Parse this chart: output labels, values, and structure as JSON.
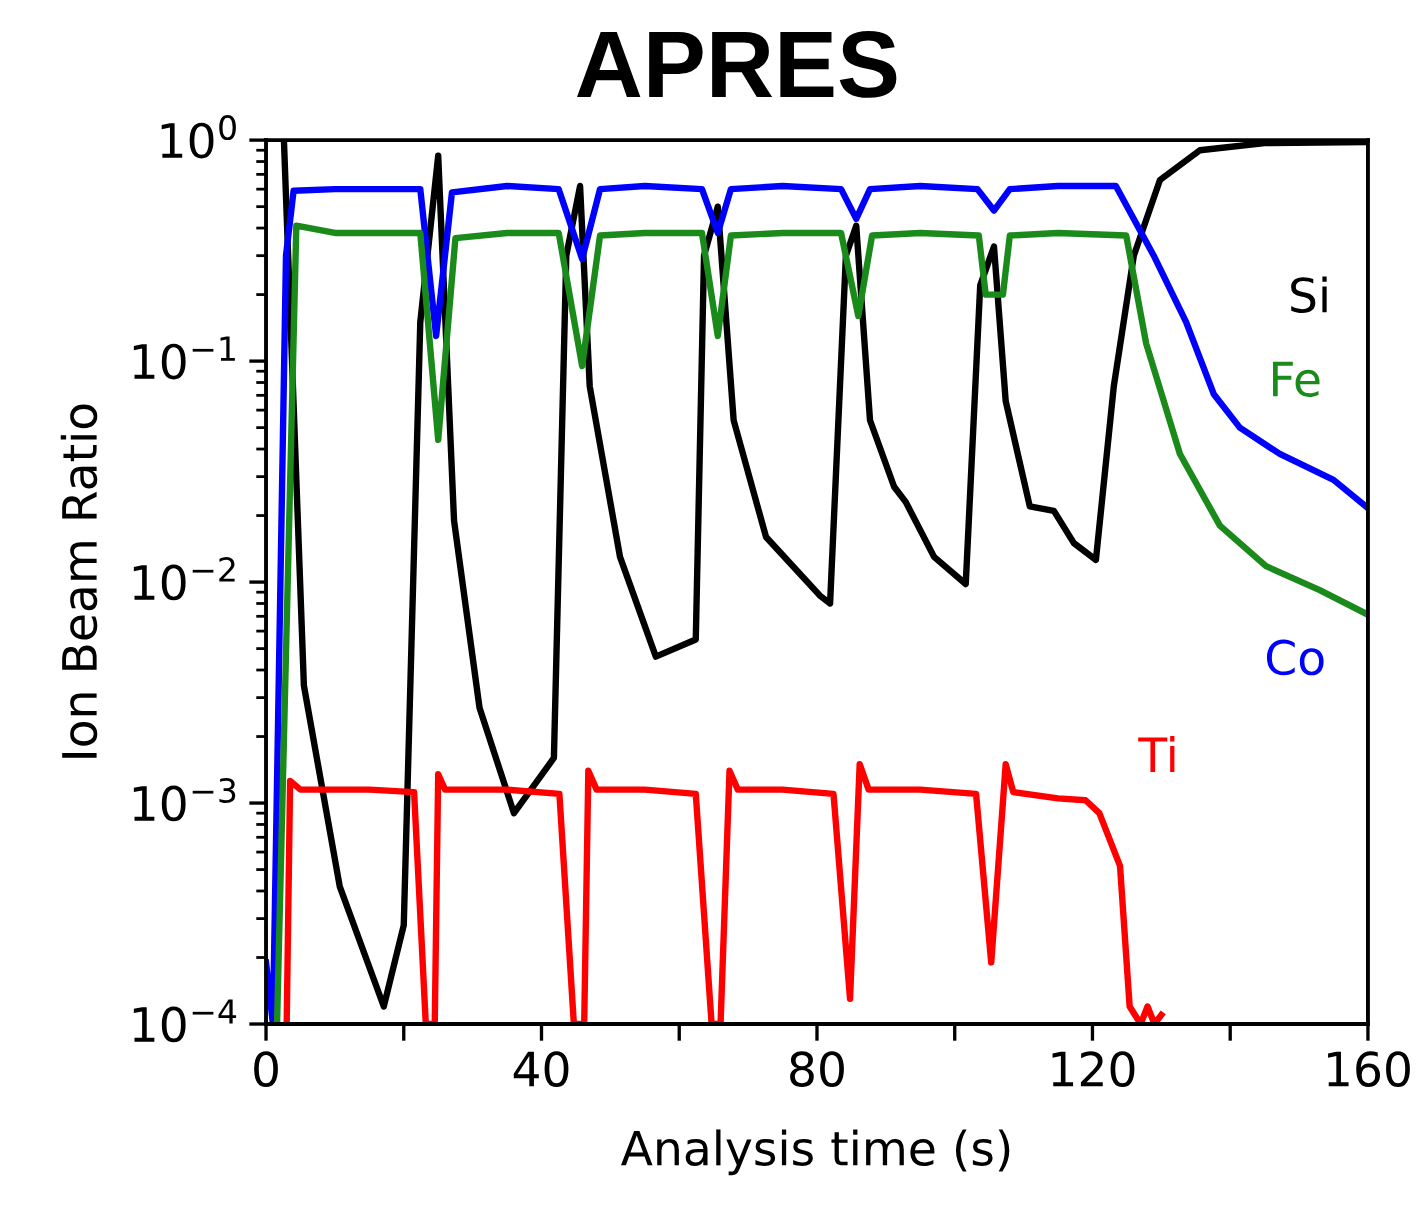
{
  "chart_data": {
    "type": "line",
    "title": "APRES",
    "xlabel": "Analysis time (s)",
    "ylabel": "Ion Beam Ratio",
    "log": "y",
    "grid": false,
    "legend": false,
    "marker": "none",
    "line_style": "solid",
    "xlim": [
      0,
      160
    ],
    "xticks": [
      0,
      {
        "value": 20,
        "label": null
      },
      40,
      {
        "value": 60,
        "label": null
      },
      80,
      {
        "value": 100,
        "label": null
      },
      120,
      {
        "value": 140,
        "label": null
      },
      160
    ],
    "ylim": [
      0.0001,
      1
    ],
    "yticks": [
      {
        "value": 0.0001,
        "label": "10$^{−4}$"
      },
      {
        "value": 0.001,
        "label": "10$^{−3}$"
      },
      {
        "value": 0.01,
        "label": "10$^{−2}$"
      },
      {
        "value": 0.1,
        "label": "10$^{−1}$"
      },
      {
        "value": 1,
        "label": "10$^{0}$"
      }
    ],
    "series": [
      {
        "name": "Si",
        "color": "#000000",
        "x": [
          2.6,
          5.5,
          10.7,
          17.1,
          20,
          22.4,
          25,
          27.3,
          31,
          36,
          41.8,
          43.6,
          45.6,
          47,
          51.4,
          56.6,
          62.4,
          63.6,
          65.6,
          67.9,
          72.6,
          80.4,
          81.9,
          84.2,
          85.7,
          87.7,
          91.2,
          92.9,
          97,
          101.6,
          103.7,
          105.7,
          107.4,
          110.9,
          114.4,
          117.3,
          120.5,
          123.1,
          126,
          129.8,
          135.6,
          145,
          160
        ],
        "values": [
          1,
          0.0034,
          0.00042,
          0.00012,
          0.00028,
          0.15,
          0.85,
          0.019,
          0.0027,
          0.0009,
          0.0016,
          0.3,
          0.62,
          0.077,
          0.013,
          0.0046,
          0.0055,
          0.3,
          0.5,
          0.054,
          0.016,
          0.0087,
          0.008,
          0.3,
          0.41,
          0.054,
          0.027,
          0.023,
          0.013,
          0.0098,
          0.22,
          0.33,
          0.066,
          0.022,
          0.021,
          0.015,
          0.0126,
          0.077,
          0.3,
          0.66,
          0.9,
          0.97,
          0.98
        ]
      },
      {
        "name": "Co",
        "color": "#0000ff",
        "x": [
          0,
          1,
          2.9,
          4,
          10,
          22.4,
          24.7,
          27,
          35,
          42.5,
          45.9,
          48.5,
          55,
          63.3,
          65.6,
          67.5,
          75,
          83.5,
          85.7,
          87.7,
          95,
          103.3,
          105.7,
          108,
          115,
          123.4,
          128.9,
          133.6,
          137.6,
          141.4,
          147.2,
          155,
          159.7
        ],
        "values": [
          0.00019,
          0.0001,
          0.3,
          0.59,
          0.6,
          0.6,
          0.13,
          0.58,
          0.62,
          0.6,
          0.29,
          0.6,
          0.62,
          0.6,
          0.38,
          0.6,
          0.62,
          0.6,
          0.44,
          0.6,
          0.62,
          0.6,
          0.48,
          0.6,
          0.62,
          0.62,
          0.3,
          0.15,
          0.071,
          0.05,
          0.038,
          0.029,
          0.022
        ]
      },
      {
        "name": "Fe",
        "color": "#1a8a1a",
        "x": [
          1.6,
          4.4,
          10,
          22.4,
          25,
          27.5,
          35,
          42.5,
          45.9,
          48.5,
          55,
          63.3,
          65.6,
          67.5,
          75,
          83.5,
          86,
          88,
          95,
          103.5,
          104.5,
          107,
          108,
          115,
          124.9,
          127.8,
          132.7,
          138.5,
          145.2,
          153,
          159.7
        ],
        "values": [
          0.0001,
          0.41,
          0.38,
          0.38,
          0.044,
          0.36,
          0.38,
          0.38,
          0.095,
          0.37,
          0.38,
          0.38,
          0.13,
          0.37,
          0.38,
          0.38,
          0.16,
          0.37,
          0.38,
          0.37,
          0.2,
          0.2,
          0.37,
          0.38,
          0.37,
          0.12,
          0.038,
          0.018,
          0.0118,
          0.0092,
          0.0072
        ]
      },
      {
        "name": "Ti",
        "color": "#ff0000",
        "x": [
          3,
          3.5,
          5,
          15,
          21.5,
          23.2,
          24.5,
          25,
          26,
          35,
          42.6,
          44.7,
          46.2,
          46.8,
          48,
          55,
          62.4,
          64.7,
          66,
          67.3,
          68.5,
          75,
          82.4,
          84.8,
          86.2,
          87.5,
          95,
          103.1,
          105.3,
          107.4,
          108.5,
          115,
          119,
          121,
          124,
          125.4,
          127,
          128,
          129,
          130
        ],
        "values": [
          0.0001,
          0.00126,
          0.00115,
          0.00115,
          0.00112,
          0.0001,
          0.0001,
          0.00135,
          0.00115,
          0.00115,
          0.0011,
          0.0001,
          0.0001,
          0.0014,
          0.00115,
          0.00115,
          0.0011,
          0.0001,
          0.0001,
          0.0014,
          0.00115,
          0.00115,
          0.0011,
          0.00013,
          0.0015,
          0.00115,
          0.00115,
          0.0011,
          0.00019,
          0.0015,
          0.00112,
          0.00105,
          0.00103,
          0.0009,
          0.00052,
          0.00012,
          0.0001,
          0.00012,
          0.0001,
          0.00011
        ]
      }
    ]
  }
}
